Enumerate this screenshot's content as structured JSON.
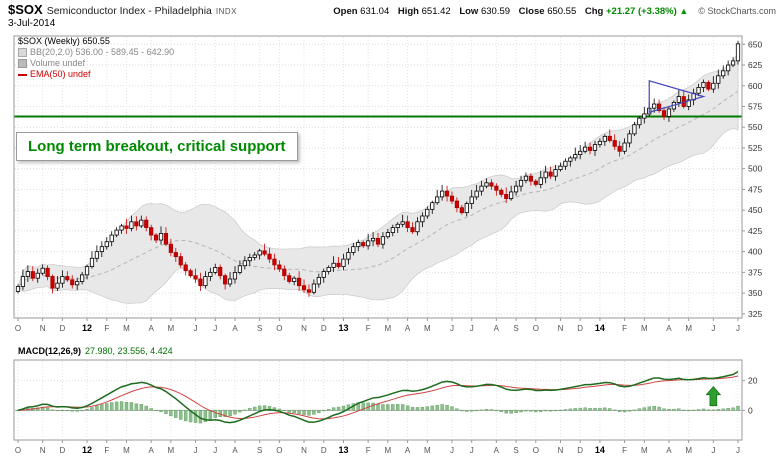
{
  "header": {
    "symbol": "$SOX",
    "name": "Semiconductor Index - Philadelphia",
    "exchange": "INDX",
    "date": "3-Jul-2014",
    "open_label": "Open",
    "open": "631.04",
    "high_label": "High",
    "high": "651.42",
    "low_label": "Low",
    "low": "630.59",
    "close_label": "Close",
    "close": "650.55",
    "chg_label": "Chg",
    "chg": "+21.27 (+3.38%)",
    "arrow": "▲",
    "copyright": "© StockCharts.com"
  },
  "legend": {
    "main": "$SOX (Weekly) 650.55",
    "bb": "BB(20,2.0) 536.00 - 589.45 - 642.90",
    "volume": "Volume undef",
    "ema": "EMA(50) undef"
  },
  "annotation": {
    "text": "Long term breakout, critical support"
  },
  "macd_label": {
    "name": "MACD(12,26,9)",
    "values": "27.980, 23.556, 4.424"
  },
  "colors": {
    "up_candle": "#000000",
    "down_candle": "#cc0000",
    "band": "#e8e8e8",
    "support": "#007a00",
    "macd_line": "#1d6b1d",
    "signal_line": "#cc4444",
    "histogram": "#8cbf8c",
    "pennant": "#4444bb",
    "accent_green": "#2f9e2f"
  },
  "chart_data": {
    "type": "candlestick",
    "title": "$SOX (Weekly) 650.55",
    "x_unit": "weeks (Oct 2011 - Jul 2014)",
    "last_close": 650.55,
    "closes": [
      358,
      370,
      376,
      368,
      374,
      380,
      370,
      356,
      362,
      370,
      366,
      360,
      364,
      372,
      382,
      392,
      400,
      406,
      412,
      420,
      426,
      431,
      428,
      436,
      431,
      438,
      429,
      420,
      414,
      422,
      409,
      399,
      394,
      384,
      377,
      371,
      367,
      359,
      370,
      375,
      381,
      371,
      361,
      367,
      375,
      383,
      389,
      393,
      396,
      401,
      397,
      391,
      384,
      379,
      371,
      364,
      368,
      359,
      354,
      351,
      361,
      369,
      376,
      381,
      386,
      382,
      391,
      399,
      406,
      411,
      407,
      413,
      416,
      409,
      418,
      423,
      429,
      433,
      436,
      429,
      424,
      436,
      443,
      451,
      459,
      466,
      473,
      467,
      461,
      453,
      447,
      458,
      466,
      473,
      479,
      483,
      479,
      474,
      469,
      464,
      472,
      479,
      486,
      491,
      485,
      481,
      489,
      496,
      491,
      499,
      503,
      509,
      513,
      517,
      521,
      526,
      522,
      529,
      533,
      539,
      534,
      527,
      521,
      531,
      542,
      553,
      561,
      566,
      573,
      578,
      570,
      563,
      572,
      580,
      587,
      575,
      583,
      591,
      598,
      604,
      596,
      603,
      612,
      618,
      625,
      630,
      650.55
    ],
    "xticks": [
      {
        "i": 0,
        "label": "O"
      },
      {
        "i": 5,
        "label": "N"
      },
      {
        "i": 9,
        "label": "D"
      },
      {
        "i": 14,
        "label": "12",
        "year": true
      },
      {
        "i": 18,
        "label": "F"
      },
      {
        "i": 22,
        "label": "M"
      },
      {
        "i": 27,
        "label": "A"
      },
      {
        "i": 31,
        "label": "M"
      },
      {
        "i": 36,
        "label": "J"
      },
      {
        "i": 40,
        "label": "J"
      },
      {
        "i": 44,
        "label": "A"
      },
      {
        "i": 49,
        "label": "S"
      },
      {
        "i": 53,
        "label": "O"
      },
      {
        "i": 58,
        "label": "N"
      },
      {
        "i": 62,
        "label": "D"
      },
      {
        "i": 66,
        "label": "13",
        "year": true
      },
      {
        "i": 71,
        "label": "F"
      },
      {
        "i": 75,
        "label": "M"
      },
      {
        "i": 79,
        "label": "A"
      },
      {
        "i": 83,
        "label": "M"
      },
      {
        "i": 88,
        "label": "J"
      },
      {
        "i": 92,
        "label": "J"
      },
      {
        "i": 97,
        "label": "A"
      },
      {
        "i": 101,
        "label": "S"
      },
      {
        "i": 105,
        "label": "O"
      },
      {
        "i": 110,
        "label": "N"
      },
      {
        "i": 114,
        "label": "D"
      },
      {
        "i": 118,
        "label": "14",
        "year": true
      },
      {
        "i": 123,
        "label": "F"
      },
      {
        "i": 127,
        "label": "M"
      },
      {
        "i": 132,
        "label": "A"
      },
      {
        "i": 136,
        "label": "M"
      },
      {
        "i": 141,
        "label": "J"
      },
      {
        "i": 146,
        "label": "J"
      }
    ],
    "price_axis": {
      "min": 320,
      "max": 660,
      "ticks": [
        325,
        350,
        375,
        400,
        425,
        450,
        475,
        500,
        525,
        550,
        575,
        600,
        625,
        650
      ]
    },
    "overlays": {
      "bollinger": {
        "period": 20,
        "stdev": 2.0
      },
      "support_line": {
        "value": 563,
        "color": "#007a00"
      },
      "pennant": {
        "points": [
          [
            128,
            606
          ],
          [
            128,
            568
          ],
          [
            139,
            587
          ]
        ],
        "color": "#4444bb"
      }
    },
    "macd": {
      "params": "12,26,9",
      "current": {
        "macd": 27.98,
        "signal": 23.556,
        "hist": 4.424
      },
      "axis": {
        "min": -20,
        "max": 34,
        "ticks": [
          20,
          0
        ]
      },
      "arrow_week": 141,
      "arrow_tip_value": 16
    }
  }
}
